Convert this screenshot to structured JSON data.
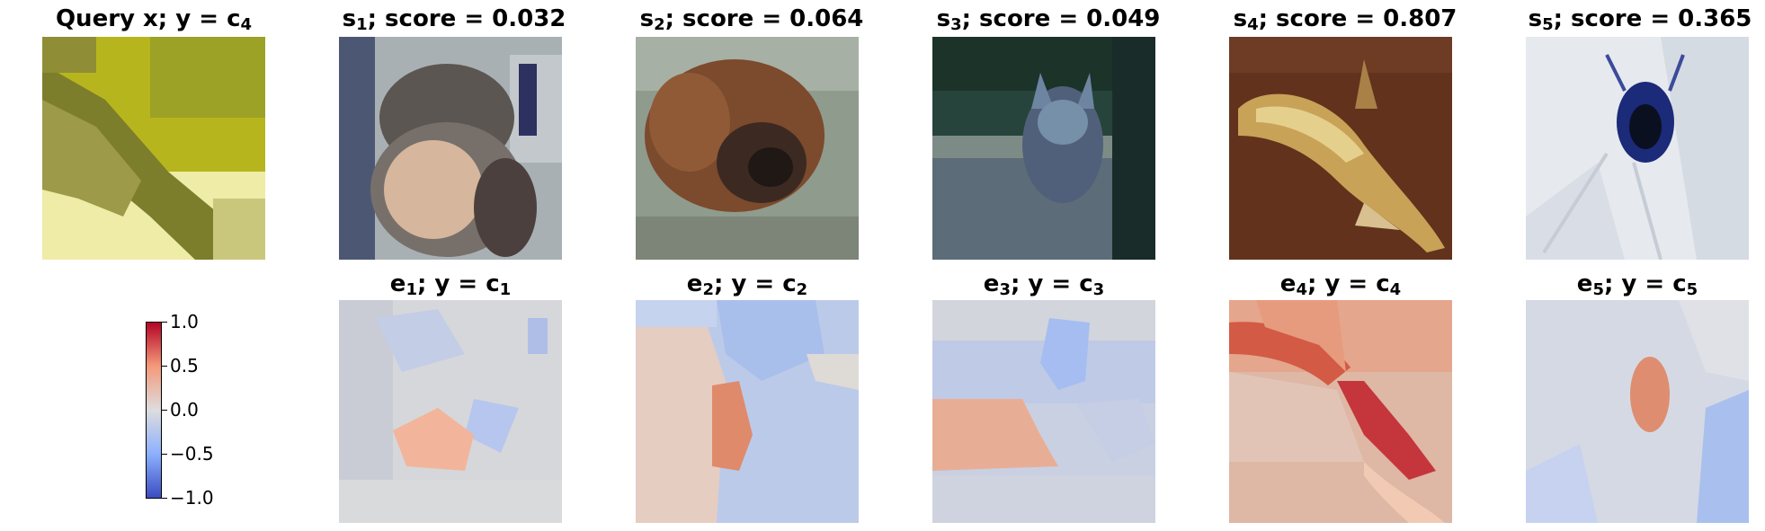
{
  "top_row": [
    {
      "main": "Query x; y",
      "sub": "",
      "eq": "c",
      "eq_sub": "4"
    },
    {
      "main": "s",
      "sub": "1",
      "text": "; score = 0.032"
    },
    {
      "main": "s",
      "sub": "2",
      "text": "; score = 0.064"
    },
    {
      "main": "s",
      "sub": "3",
      "text": "; score = 0.049"
    },
    {
      "main": "s",
      "sub": "4",
      "text": "; score = 0.807"
    },
    {
      "main": "s",
      "sub": "5",
      "text": "; score = 0.365"
    }
  ],
  "bottom_row": [
    {
      "main": "e",
      "sub": "1",
      "text": "; y = c",
      "c_sub": "1"
    },
    {
      "main": "e",
      "sub": "2",
      "text": "; y = c",
      "c_sub": "2"
    },
    {
      "main": "e",
      "sub": "3",
      "text": "; y = c",
      "c_sub": "3"
    },
    {
      "main": "e",
      "sub": "4",
      "text": "; y = c",
      "c_sub": "4"
    },
    {
      "main": "e",
      "sub": "5",
      "text": "; y = c",
      "c_sub": "5"
    }
  ],
  "colorbar": {
    "colormap": "coolwarm",
    "range": [
      -1.0,
      1.0
    ],
    "ticks": [
      "1.0",
      "0.5",
      "0.0",
      "−0.5",
      "−1.0"
    ]
  },
  "colors": {
    "positive": "#b40426",
    "neutral": "#dddddd",
    "negative": "#3b4cc0"
  }
}
